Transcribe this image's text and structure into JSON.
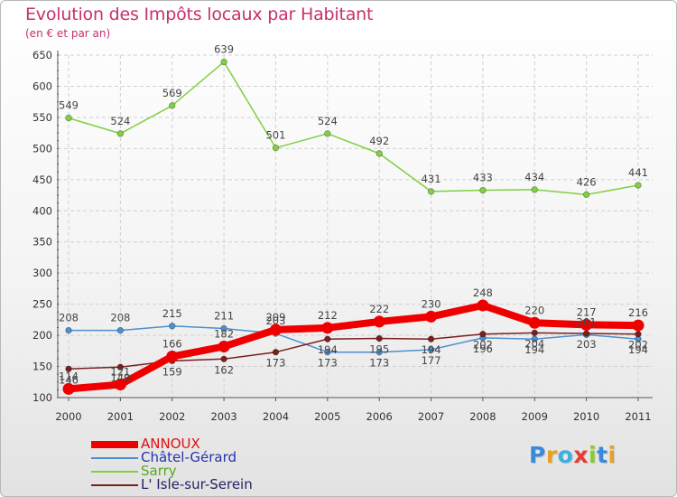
{
  "chart_data": {
    "type": "line",
    "title": "Evolution des Impôts locaux par Habitant",
    "subtitle": "(en € et par an)",
    "xlabel": "",
    "ylabel": "",
    "ylim": [
      100,
      650
    ],
    "yticks": [
      "100",
      "150",
      "200",
      "250",
      "300",
      "350",
      "400",
      "450",
      "500",
      "550",
      "600",
      "650"
    ],
    "grid": true,
    "legend_position": "bottom-left",
    "categories": [
      "2000",
      "2001",
      "2002",
      "2003",
      "2004",
      "2005",
      "2006",
      "2007",
      "2008",
      "2009",
      "2010",
      "2011"
    ],
    "series": [
      {
        "name": "ANNOUX",
        "color": "#ee0000",
        "values": [
          114,
          121,
          166,
          182,
          209,
          212,
          222,
          230,
          248,
          220,
          217,
          216
        ],
        "labels": [
          "114",
          "121",
          "166",
          "182",
          "209",
          "212",
          "222",
          "230",
          "248",
          "220",
          "217",
          "216"
        ]
      },
      {
        "name": "Châtel-Gérard",
        "color": "#4d8fd0",
        "values": [
          208,
          208,
          215,
          211,
          203,
          173,
          173,
          177,
          196,
          194,
          201,
          194
        ],
        "labels": [
          "208",
          "208",
          "215",
          "211",
          "203",
          "173",
          "173",
          "177",
          "196",
          "194",
          "201",
          "194"
        ]
      },
      {
        "name": "Sarry",
        "color": "#80d040",
        "values": [
          549,
          524,
          569,
          639,
          501,
          524,
          492,
          431,
          433,
          434,
          426,
          441
        ],
        "labels": [
          "549",
          "524",
          "569",
          "639",
          "501",
          "524",
          "492",
          "431",
          "433",
          "434",
          "426",
          "441"
        ]
      },
      {
        "name": "L' Isle-sur-Serein",
        "color": "#7a1f1f",
        "values": [
          146,
          149,
          159,
          162,
          173,
          194,
          195,
          194,
          202,
          204,
          203,
          202
        ],
        "labels": [
          "146",
          "149",
          "159",
          "162",
          "173",
          "194",
          "195",
          "194",
          "202",
          "204",
          "203",
          "202"
        ]
      }
    ]
  },
  "logo": {
    "letters": [
      {
        "ch": "P",
        "color": "#3a8ad8"
      },
      {
        "ch": "r",
        "color": "#e8a020"
      },
      {
        "ch": "o",
        "color": "#3ab0e0"
      },
      {
        "ch": "x",
        "color": "#e83a30"
      },
      {
        "ch": "i",
        "color": "#8acc30"
      },
      {
        "ch": "t",
        "color": "#3a8ad8"
      },
      {
        "ch": "i",
        "color": "#e8a020"
      }
    ]
  }
}
